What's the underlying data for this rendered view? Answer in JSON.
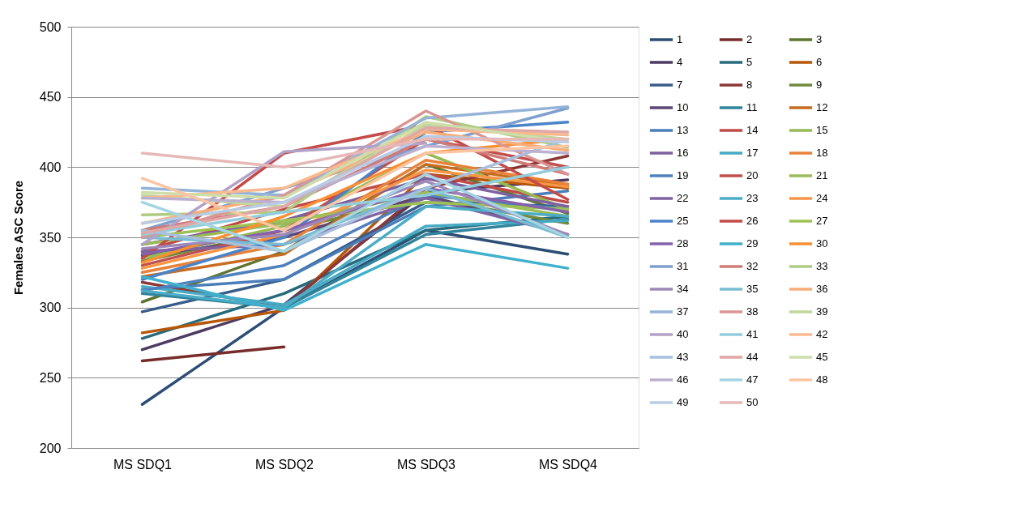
{
  "chart_data": {
    "type": "line",
    "ylabel": "Females ASC Score",
    "categories": [
      "MS SDQ1",
      "MS SDQ2",
      "MS SDQ3",
      "MS SDQ4"
    ],
    "ylim": [
      200,
      500
    ],
    "yticks": [
      200,
      250,
      300,
      350,
      400,
      450,
      500
    ],
    "grid": "y",
    "legend": "right",
    "marker": "none",
    "line_style": "solid",
    "series": [
      {
        "name": "1",
        "color": "#2c4d75",
        "values": [
          231,
          300,
          355,
          338
        ]
      },
      {
        "name": "2",
        "color": "#772c2a",
        "values": [
          262,
          272,
          null,
          null
        ]
      },
      {
        "name": "3",
        "color": "#5f7530",
        "values": [
          304,
          340,
          402,
          367
        ]
      },
      {
        "name": "4",
        "color": "#4d3b62",
        "values": [
          270,
          302,
          382,
          391
        ]
      },
      {
        "name": "5",
        "color": "#276a7c",
        "values": [
          278,
          310,
          355,
          365
        ]
      },
      {
        "name": "6",
        "color": "#b65708",
        "values": [
          282,
          298,
          395,
          385
        ]
      },
      {
        "name": "7",
        "color": "#385d8a",
        "values": [
          297,
          320,
          375,
          372
        ]
      },
      {
        "name": "8",
        "color": "#8c3836",
        "values": [
          318,
          300,
          385,
          408
        ]
      },
      {
        "name": "9",
        "color": "#71893f",
        "values": [
          333,
          355,
          378,
          360
        ]
      },
      {
        "name": "10",
        "color": "#5c4776",
        "values": [
          337,
          350,
          380,
          352
        ]
      },
      {
        "name": "11",
        "color": "#31849b",
        "values": [
          310,
          300,
          352,
          363
        ]
      },
      {
        "name": "12",
        "color": "#c96b20",
        "values": [
          322,
          338,
          402,
          387
        ]
      },
      {
        "name": "13",
        "color": "#4a7ebb",
        "values": [
          313,
          320,
          372,
          383
        ]
      },
      {
        "name": "14",
        "color": "#be4b48",
        "values": [
          340,
          370,
          395,
          375
        ]
      },
      {
        "name": "15",
        "color": "#98b954",
        "values": [
          335,
          358,
          410,
          370
        ]
      },
      {
        "name": "16",
        "color": "#7d60a0",
        "values": [
          345,
          362,
          392,
          372
        ]
      },
      {
        "name": "17",
        "color": "#46aac5",
        "values": [
          315,
          302,
          358,
          362
        ]
      },
      {
        "name": "18",
        "color": "#e8823a",
        "values": [
          325,
          345,
          405,
          388
        ]
      },
      {
        "name": "19",
        "color": "#4f81bd",
        "values": [
          312,
          330,
          380,
          370
        ]
      },
      {
        "name": "20",
        "color": "#c0504d",
        "values": [
          330,
          355,
          420,
          400
        ]
      },
      {
        "name": "21",
        "color": "#9bbb59",
        "values": [
          345,
          360,
          382,
          365
        ]
      },
      {
        "name": "22",
        "color": "#8064a2",
        "values": [
          340,
          345,
          378,
          352
        ]
      },
      {
        "name": "23",
        "color": "#4bacc6",
        "values": [
          312,
          300,
          372,
          365
        ]
      },
      {
        "name": "24",
        "color": "#f79646",
        "values": [
          328,
          352,
          398,
          386
        ]
      },
      {
        "name": "25",
        "color": "#4a84c8",
        "values": [
          320,
          350,
          425,
          432
        ]
      },
      {
        "name": "26",
        "color": "#c44b48",
        "values": [
          335,
          410,
          430,
          377
        ]
      },
      {
        "name": "27",
        "color": "#9fc254",
        "values": [
          350,
          362,
          375,
          370
        ]
      },
      {
        "name": "28",
        "color": "#8462ab",
        "values": [
          338,
          355,
          385,
          368
        ]
      },
      {
        "name": "29",
        "color": "#40b0cc",
        "values": [
          322,
          298,
          345,
          328
        ]
      },
      {
        "name": "30",
        "color": "#fb8f32",
        "values": [
          332,
          365,
          410,
          420
        ]
      },
      {
        "name": "31",
        "color": "#7f9fcf",
        "values": [
          355,
          385,
          415,
          442
        ]
      },
      {
        "name": "32",
        "color": "#d07b79",
        "values": [
          355,
          372,
          420,
          395
        ]
      },
      {
        "name": "33",
        "color": "#b0cb82",
        "values": [
          366,
          368,
          436,
          414
        ]
      },
      {
        "name": "34",
        "color": "#9d89b8",
        "values": [
          342,
          352,
          390,
          352
        ]
      },
      {
        "name": "35",
        "color": "#78bdd4",
        "values": [
          350,
          345,
          385,
          350
        ]
      },
      {
        "name": "36",
        "color": "#f9ad79",
        "values": [
          360,
          380,
          425,
          412
        ]
      },
      {
        "name": "37",
        "color": "#95b3d7",
        "values": [
          385,
          380,
          435,
          443
        ]
      },
      {
        "name": "38",
        "color": "#d99694",
        "values": [
          350,
          380,
          440,
          395
        ]
      },
      {
        "name": "39",
        "color": "#c3d69b",
        "values": [
          380,
          372,
          430,
          420
        ]
      },
      {
        "name": "40",
        "color": "#b2a2c7",
        "values": [
          345,
          411,
          417,
          null
        ]
      },
      {
        "name": "41",
        "color": "#93cddd",
        "values": [
          352,
          368,
          380,
          400
        ]
      },
      {
        "name": "42",
        "color": "#fab98f",
        "values": [
          378,
          385,
          427,
          423
        ]
      },
      {
        "name": "43",
        "color": "#a7c0de",
        "values": [
          355,
          340,
          385,
          420
        ]
      },
      {
        "name": "44",
        "color": "#dfa7a6",
        "values": [
          353,
          372,
          428,
          425
        ]
      },
      {
        "name": "45",
        "color": "#cddeaa",
        "values": [
          382,
          378,
          432,
          418
        ]
      },
      {
        "name": "46",
        "color": "#bcb0d0",
        "values": [
          378,
          375,
          415,
          410
        ]
      },
      {
        "name": "47",
        "color": "#a5d5e2",
        "values": [
          375,
          340,
          395,
          350
        ]
      },
      {
        "name": "48",
        "color": "#fbc5a3",
        "values": [
          392,
          355,
          410,
          415
        ]
      },
      {
        "name": "49",
        "color": "#b9cce4",
        "values": [
          360,
          375,
          422,
          418
        ]
      },
      {
        "name": "50",
        "color": "#e6b9b8",
        "values": [
          410,
          400,
          420,
          420
        ]
      }
    ]
  }
}
